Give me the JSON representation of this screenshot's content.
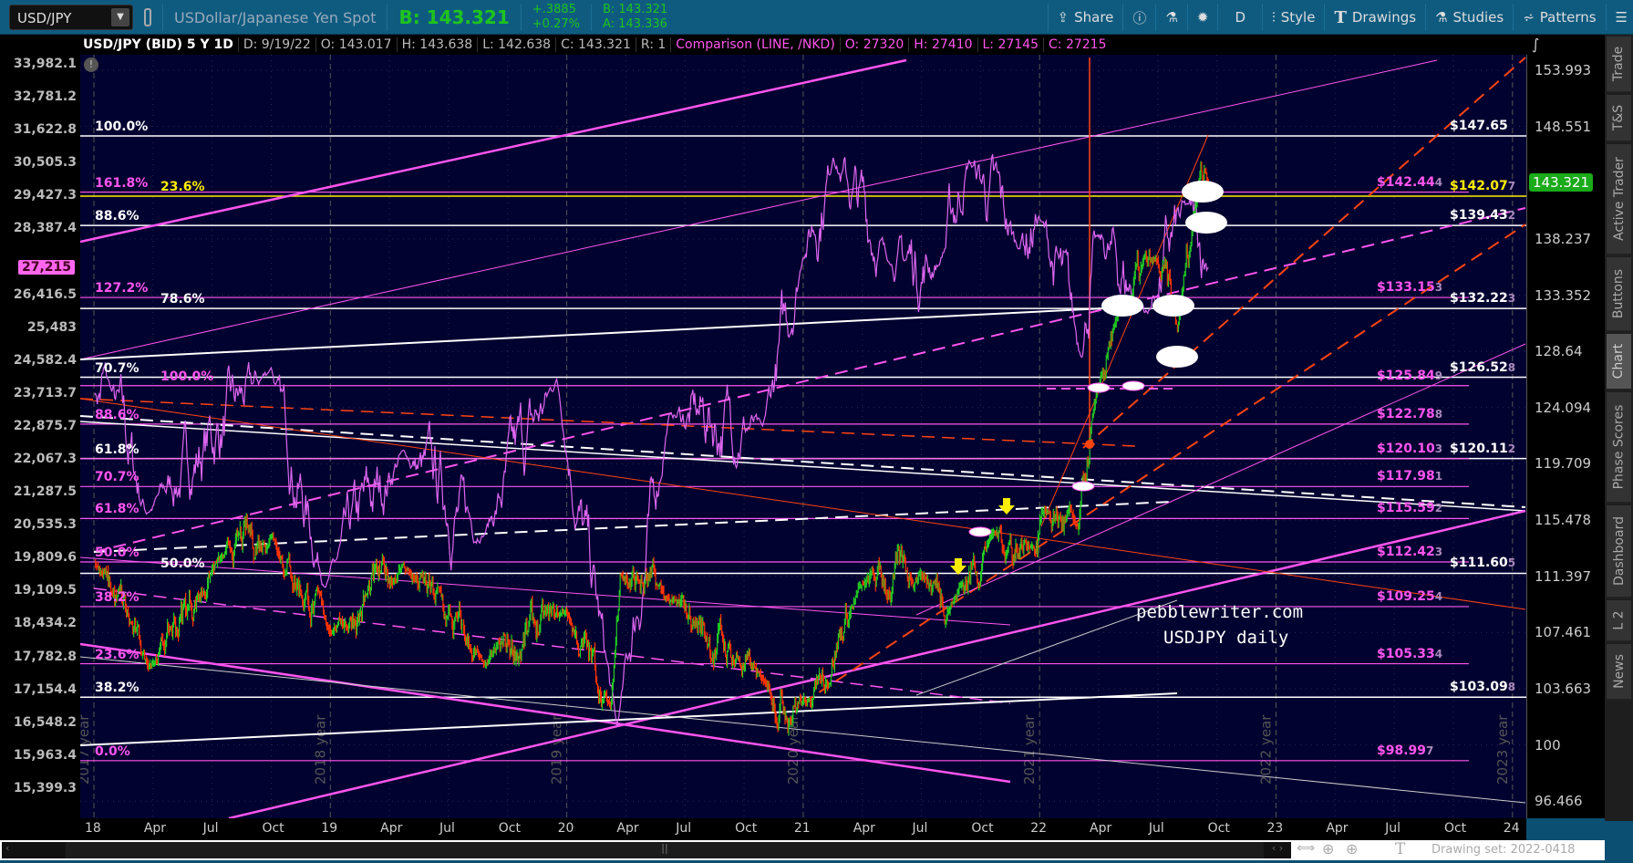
{
  "toolbar": {
    "symbol": "USD/JPY",
    "description": "USDollar/Japanese Yen Spot",
    "bid_big": "B: 143.321",
    "change": "+.3885",
    "change_pct": "+0.27%",
    "bid": "B: 143.321",
    "ask": "A: 143.336",
    "buttons": [
      {
        "label": "Share",
        "icon": "share-icon"
      },
      {
        "label": "",
        "icon": "info-icon"
      },
      {
        "label": "",
        "icon": "flask-icon"
      },
      {
        "label": "",
        "icon": "gear-icon"
      },
      {
        "label": "D",
        "icon": ""
      },
      {
        "label": "Style",
        "icon": "candle-icon"
      },
      {
        "label": "Drawings",
        "icon": "text-t-icon"
      },
      {
        "label": "Studies",
        "icon": "flask-icon"
      },
      {
        "label": "Patterns",
        "icon": "patterns-icon"
      },
      {
        "label": "",
        "icon": "menu-icon"
      }
    ]
  },
  "infobar": {
    "title": "USD/JPY (BID) 5 Y 1D",
    "date": "D: 9/19/22",
    "open": "O: 143.017",
    "high": "H: 143.638",
    "low": "L: 142.638",
    "close": "C: 143.321",
    "r": "R: 1",
    "comparison": "Comparison (LINE, /NKD)",
    "cmp_open": "O: 27320",
    "cmp_high": "H: 27410",
    "cmp_low": "L: 27145",
    "cmp_close": "C: 27215"
  },
  "sidebar": [
    "Trade",
    "T&S",
    "Active Trader",
    "Buttons",
    "Chart",
    "Phase Scores",
    "Dashboard",
    "L 2",
    "News"
  ],
  "sidebar_selected": "Chart",
  "colors": {
    "background": "#020230",
    "white_level": "#ffffff",
    "pink_level": "#ff55ee",
    "yellow_level": "#ffee00",
    "up": "#22cc22",
    "down": "#ff3300",
    "trend_red": "#ff4411",
    "last_price_tag": "#1aaa1a",
    "comparison_tag": "#ff66ee"
  },
  "right_axis": [
    "153.993",
    "148.551",
    "138.237",
    "133.352",
    "128.64",
    "124.094",
    "119.709",
    "115.478",
    "111.397",
    "107.461",
    "103.663",
    "100",
    "96.466"
  ],
  "last_price": "143.321",
  "left_axis": [
    "33,982.1",
    "32,781.2",
    "31,622.8",
    "30,505.3",
    "29,427.3",
    "28,387.4",
    "26,416.5",
    "25,483",
    "24,582.4",
    "23,713.7",
    "22,875.7",
    "22,067.3",
    "21,287.5",
    "20,535.3",
    "19,809.6",
    "19,109.5",
    "18,434.2",
    "17,782.8",
    "17,154.4",
    "16,548.2",
    "15,963.4",
    "15,399.3"
  ],
  "comparison_last": "27,215",
  "x_axis": [
    "18",
    "Apr",
    "Jul",
    "Oct",
    "19",
    "Apr",
    "Jul",
    "Oct",
    "20",
    "Apr",
    "Jul",
    "Oct",
    "21",
    "Apr",
    "Jul",
    "Oct",
    "22",
    "Apr",
    "Jul",
    "Oct",
    "23",
    "Apr",
    "Jul",
    "Oct",
    "24"
  ],
  "year_markers": [
    "2017 year",
    "2018 year",
    "2019 year",
    "2020 year",
    "2021 year",
    "2022 year",
    "2023 year"
  ],
  "levels": [
    {
      "pct": "100.0%",
      "price": "$147.65",
      "sub": "",
      "color": "white"
    },
    {
      "pct": "161.8%",
      "price": "$142.44",
      "sub": "4",
      "color": "pink"
    },
    {
      "pct": "23.6%",
      "price": "$142.07",
      "sub": "7",
      "color": "yellow"
    },
    {
      "pct": "88.6%",
      "price": "$139.43",
      "sub": "2",
      "color": "white"
    },
    {
      "pct": "127.2%",
      "price": "$133.15",
      "sub": "3",
      "color": "pink"
    },
    {
      "pct": "78.6%",
      "price": "$132.22",
      "sub": "3",
      "color": "white"
    },
    {
      "pct": "70.7%",
      "price": "$126.52",
      "sub": "8",
      "color": "white"
    },
    {
      "pct": "100.0%",
      "price": "$125.84",
      "sub": "9",
      "color": "pink"
    },
    {
      "pct": "88.6%",
      "price": "$122.78",
      "sub": "8",
      "color": "pink"
    },
    {
      "pct": "61.8%",
      "price": "$120.11",
      "sub": "2",
      "color": "white"
    },
    {
      "pct": "",
      "price": "$120.10",
      "sub": "3",
      "color": "pink"
    },
    {
      "pct": "70.7%",
      "price": "$117.98",
      "sub": "1",
      "color": "pink"
    },
    {
      "pct": "61.8%",
      "price": "$115.59",
      "sub": "2",
      "color": "pink"
    },
    {
      "pct": "50.0%",
      "price": "$112.42",
      "sub": "3",
      "color": "pink"
    },
    {
      "pct": "50.0%",
      "price": "$111.60",
      "sub": "5",
      "color": "white"
    },
    {
      "pct": "38.2%",
      "price": "$109.25",
      "sub": "4",
      "color": "pink"
    },
    {
      "pct": "23.6%",
      "price": "$105.33",
      "sub": "4",
      "color": "pink"
    },
    {
      "pct": "38.2%",
      "price": "$103.09",
      "sub": "8",
      "color": "white"
    },
    {
      "pct": "0.0%",
      "price": "$98.99",
      "sub": "7",
      "color": "pink"
    }
  ],
  "annotation": {
    "line1": "pebblewriter.com",
    "line2": "USDJPY daily"
  },
  "scrollbar": {
    "drawing_set": "Drawing set: 2022-0418"
  },
  "chart_data": {
    "type": "candlestick+line",
    "title": "USD/JPY (BID) 5 Y 1D",
    "y_scale": "log",
    "x_range": [
      "2018-01",
      "2024-01"
    ],
    "ylim": [
      96.466,
      153.993
    ],
    "comparison_ylim": [
      15399.3,
      33982.1
    ],
    "grid": true,
    "series": [
      {
        "name": "USD/JPY",
        "kind": "candles",
        "points": [
          [
            "2018-01-02",
            112.5
          ],
          [
            "2018-03-26",
            105.2
          ],
          [
            "2018-07-18",
            112.9
          ],
          [
            "2018-10-04",
            114.3
          ],
          [
            "2019-01-03",
            107.5
          ],
          [
            "2019-04-24",
            112.2
          ],
          [
            "2019-08-26",
            105.3
          ],
          [
            "2019-12-31",
            108.9
          ],
          [
            "2020-03-09",
            102.4
          ],
          [
            "2020-03-24",
            111.5
          ],
          [
            "2020-06-05",
            109.8
          ],
          [
            "2020-10-30",
            104.3
          ],
          [
            "2021-01-06",
            102.7
          ],
          [
            "2021-03-31",
            110.7
          ],
          [
            "2021-07-02",
            111.6
          ],
          [
            "2021-08-20",
            109.5
          ],
          [
            "2021-10-20",
            114.5
          ],
          [
            "2021-12-20",
            113.5
          ],
          [
            "2022-01-04",
            116.0
          ],
          [
            "2022-03-01",
            114.8
          ],
          [
            "2022-03-28",
            124.5
          ],
          [
            "2022-04-28",
            131.0
          ],
          [
            "2022-06-29",
            136.6
          ],
          [
            "2022-08-02",
            130.5
          ],
          [
            "2022-09-07",
            144.9
          ],
          [
            "2022-09-19",
            143.321
          ]
        ]
      },
      {
        "name": "/NKD",
        "kind": "line",
        "points": [
          [
            "2018-01-02",
            23700
          ],
          [
            "2018-01-23",
            24100
          ],
          [
            "2018-03-23",
            20800
          ],
          [
            "2018-10-02",
            24400
          ],
          [
            "2018-12-25",
            19200
          ],
          [
            "2019-04-24",
            22300
          ],
          [
            "2019-08-26",
            20300
          ],
          [
            "2019-12-17",
            24100
          ],
          [
            "2020-03-19",
            16500
          ],
          [
            "2020-06-08",
            23200
          ],
          [
            "2020-10-30",
            22900
          ],
          [
            "2020-12-31",
            27500
          ],
          [
            "2021-02-16",
            30700
          ],
          [
            "2021-05-13",
            27400
          ],
          [
            "2021-07-30",
            27300
          ],
          [
            "2021-09-14",
            30600
          ],
          [
            "2021-11-30",
            27800
          ],
          [
            "2021-12-31",
            28800
          ],
          [
            "2022-03-08",
            24700
          ],
          [
            "2022-03-29",
            28200
          ],
          [
            "2022-06-17",
            25900
          ],
          [
            "2022-08-17",
            29200
          ],
          [
            "2022-09-19",
            27215
          ]
        ]
      }
    ]
  }
}
